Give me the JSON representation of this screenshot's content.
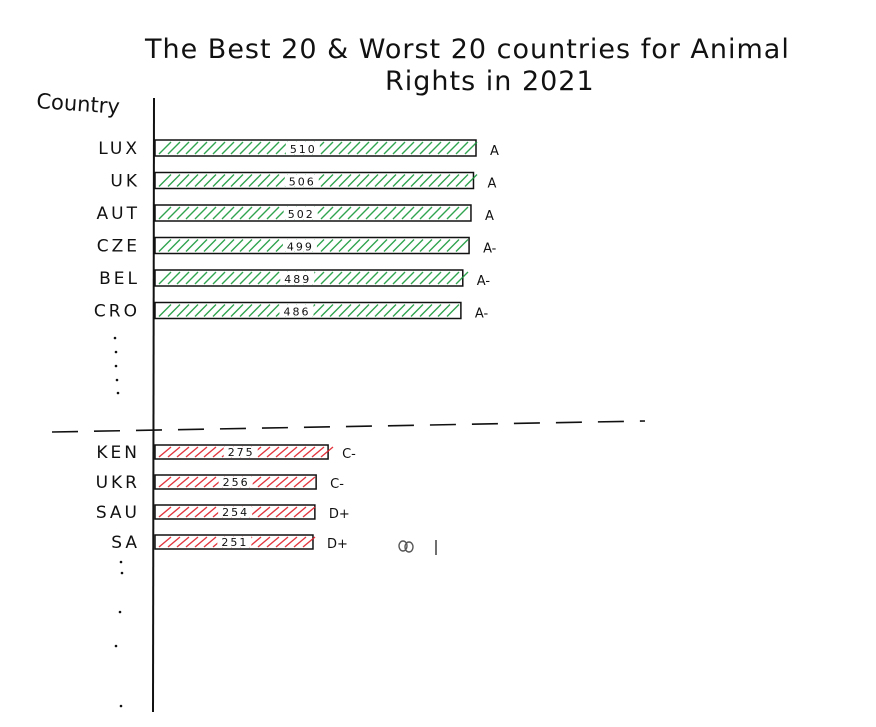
{
  "chart_data": {
    "type": "bar",
    "orientation": "horizontal",
    "title_line1": "The Best 20 & Worst 20 countries for Animal",
    "title_line2": "Rights in 2021",
    "ylabel": "Country",
    "best": [
      {
        "category": "LUX",
        "value": 510,
        "value_label": "510",
        "grade": "A"
      },
      {
        "category": "UK",
        "value": 506,
        "value_label": "506",
        "grade": "A"
      },
      {
        "category": "AUT",
        "value": 502,
        "value_label": "502",
        "grade": "A"
      },
      {
        "category": "CZE",
        "value": 499,
        "value_label": "499",
        "grade": "A-"
      },
      {
        "category": "BEL",
        "value": 489,
        "value_label": "489",
        "grade": "A-"
      },
      {
        "category": "CRO",
        "value": 486,
        "value_label": "486",
        "grade": "A-"
      }
    ],
    "worst": [
      {
        "category": "KEN",
        "value": 275,
        "value_label": "275",
        "grade": "C-"
      },
      {
        "category": "UKR",
        "value": 256,
        "value_label": "256",
        "grade": "C-"
      },
      {
        "category": "SAU",
        "value": 254,
        "value_label": "254",
        "grade": "D+"
      },
      {
        "category": "SA",
        "value": 251,
        "value_label": "251",
        "grade": "D+"
      }
    ],
    "best_color": "#1a9a3c",
    "worst_color": "#e0202a",
    "grid": false,
    "legend": "none"
  }
}
